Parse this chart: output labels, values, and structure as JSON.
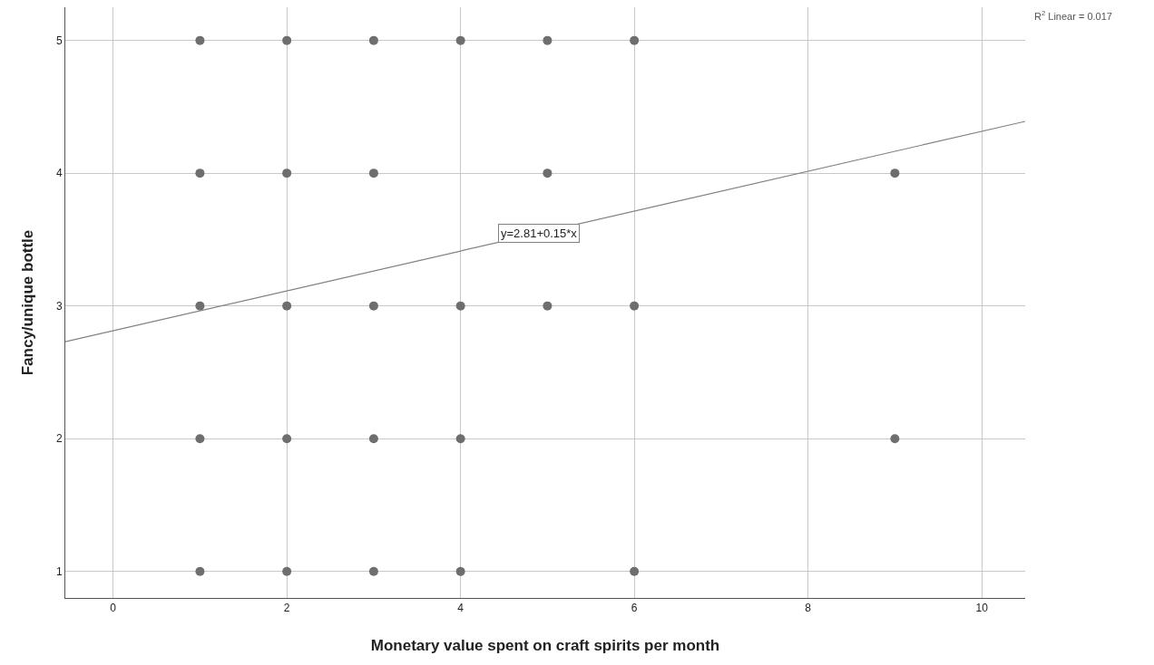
{
  "chart_data": {
    "type": "scatter",
    "xlabel": "Monetary value spent on craft spirits per month",
    "ylabel": "Fancy/unique bottle",
    "series": [
      {
        "marker": "circle",
        "color": "#6e6e6e",
        "x": [
          1,
          2,
          3,
          4,
          5,
          6,
          1,
          2,
          3,
          5,
          9,
          1,
          2,
          3,
          4,
          5,
          6,
          1,
          2,
          3,
          4,
          9,
          1,
          2,
          3,
          4,
          6
        ],
        "values": [
          5,
          5,
          5,
          5,
          5,
          5,
          4,
          4,
          4,
          4,
          4,
          3,
          3,
          3,
          3,
          3,
          3,
          2,
          2,
          2,
          2,
          2,
          1,
          1,
          1,
          1,
          1
        ]
      },
      {
        "type": "line",
        "color": "#808080",
        "x": [
          -0.55,
          10.5
        ],
        "values": [
          2.73,
          4.39
        ]
      }
    ],
    "annotations": [
      {
        "text": "y=2.81+0.15*x",
        "x": 4.9,
        "y": 3.55
      },
      "R$^{2}$ Linear = 0.017"
    ],
    "xlim": [
      -0.55,
      10.5
    ],
    "xticks": [
      0,
      2,
      4,
      6,
      8,
      10
    ],
    "ylim": [
      0.8,
      5.25
    ],
    "yticks": [
      1,
      2,
      3,
      4,
      5
    ],
    "grid": true
  }
}
